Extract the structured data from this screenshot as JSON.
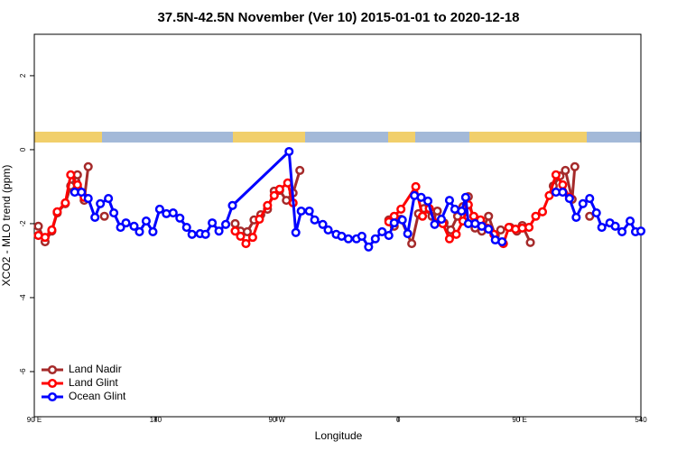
{
  "chart_data": {
    "type": "line",
    "title": "37.5N-42.5N November (Ver 10)   2015-01-01 to 2020-12-18",
    "xlabel": "Longitude",
    "ylabel": "XCO2 - MLO trend (ppm)",
    "xlim": [
      90,
      540
    ],
    "ylim": [
      -7.22,
      3.12
    ],
    "xticks": [
      {
        "value": 90,
        "label": "90 E"
      },
      180,
      {
        "value": 270,
        "label": "90 W"
      },
      {
        "value": 360,
        "label": "0"
      },
      {
        "value": 450,
        "label": "90 E"
      },
      540
    ],
    "yticks": [
      -6,
      -4,
      -2,
      0,
      2
    ],
    "legend": "bottom-left",
    "series": [
      {
        "name": "Land Nadir",
        "color": "#a52a2a",
        "x": [
          93,
          98,
          103,
          107,
          113,
          117,
          122,
          127,
          130,
          null,
          142,
          null,
          239,
          243,
          248,
          253,
          258,
          263,
          268,
          272,
          277,
          282,
          287,
          null,
          353,
          357,
          362,
          370,
          375,
          379,
          385,
          389,
          394,
          399,
          404,
          408,
          412,
          417,
          422,
          427,
          432,
          436,
          443,
          448,
          452,
          458,
          null,
          475,
          480,
          484,
          489,
          491,
          null,
          502
        ],
        "values": [
          -2.07,
          -2.49,
          -2.2,
          -1.71,
          -1.46,
          -0.98,
          -0.68,
          -1.37,
          -0.46,
          null,
          -1.8,
          null,
          -2.0,
          -2.2,
          -2.22,
          -1.9,
          -1.76,
          -1.61,
          -1.12,
          -1.1,
          -1.37,
          -1.17,
          -0.56,
          null,
          -1.9,
          -2.07,
          -1.88,
          -2.54,
          -1.73,
          -1.59,
          -1.8,
          -1.66,
          -1.98,
          -2.17,
          -1.8,
          -1.54,
          -1.27,
          -2.12,
          -2.2,
          -1.8,
          -2.32,
          -2.17,
          -2.1,
          -2.2,
          -2.05,
          -2.51,
          null,
          -0.98,
          -0.71,
          -0.56,
          -1.34,
          -0.46,
          null,
          -1.8
        ]
      },
      {
        "name": "Land Glint",
        "color": "#ff0000",
        "x": [
          93,
          98,
          103,
          107,
          113,
          117,
          122,
          127,
          null,
          239,
          243,
          247,
          252,
          257,
          263,
          268,
          272,
          278,
          282,
          null,
          353,
          357,
          362,
          373,
          378,
          383,
          388,
          393,
          398,
          403,
          408,
          412,
          416,
          421,
          426,
          431,
          438,
          442,
          447,
          452,
          457,
          462,
          467,
          472,
          477,
          482,
          487
        ],
        "values": [
          -2.32,
          -2.37,
          -2.17,
          -1.68,
          -1.44,
          -0.68,
          -0.95,
          -1.29,
          null,
          -2.2,
          -2.34,
          -2.54,
          -2.37,
          -1.88,
          -1.51,
          -1.24,
          -1.07,
          -0.9,
          -1.44,
          null,
          -1.95,
          -1.8,
          -1.61,
          -1.0,
          -1.8,
          -1.59,
          -1.98,
          -2.0,
          -2.41,
          -2.29,
          -1.93,
          -1.49,
          -1.8,
          -1.9,
          -2.12,
          -2.29,
          -2.54,
          -2.1,
          -2.15,
          -2.12,
          -2.1,
          -1.8,
          -1.68,
          -1.24,
          -0.68,
          -0.95,
          -1.29
        ]
      },
      {
        "name": "Ocean Glint",
        "color": "#0000ff",
        "x": [
          120,
          125,
          130,
          135,
          139,
          145,
          149,
          154,
          158,
          164,
          168,
          173,
          178,
          183,
          188,
          193,
          198,
          203,
          207,
          213,
          217,
          222,
          227,
          232,
          237,
          279,
          284,
          288,
          294,
          298,
          304,
          308,
          314,
          318,
          323,
          329,
          333,
          338,
          343,
          348,
          353,
          357,
          363,
          367,
          372,
          377,
          382,
          387,
          392,
          398,
          402,
          407,
          410,
          412,
          417,
          422,
          427,
          432,
          437,
          null,
          477,
          482,
          487,
          492,
          497,
          502,
          507,
          511,
          517,
          521,
          526,
          532,
          536,
          540
        ],
        "values": [
          -1.15,
          -1.15,
          -1.32,
          -1.83,
          -1.46,
          -1.32,
          -1.71,
          -2.1,
          -1.98,
          -2.07,
          -2.22,
          -1.93,
          -2.22,
          -1.61,
          -1.73,
          -1.71,
          -1.85,
          -2.1,
          -2.29,
          -2.27,
          -2.29,
          -1.98,
          -2.2,
          -2.02,
          -1.51,
          -0.05,
          -2.24,
          -1.66,
          -1.66,
          -1.9,
          -2.02,
          -2.17,
          -2.29,
          -2.34,
          -2.41,
          -2.41,
          -2.34,
          -2.63,
          -2.41,
          -2.22,
          -2.32,
          -1.98,
          -1.9,
          -2.27,
          -1.24,
          -1.29,
          -1.39,
          -2.02,
          -1.88,
          -1.37,
          -1.61,
          -1.66,
          -1.29,
          -2.0,
          -2.0,
          -2.07,
          -2.15,
          -2.44,
          -2.49,
          null,
          -1.15,
          -1.15,
          -1.32,
          -1.83,
          -1.46,
          -1.32,
          -1.71,
          -2.1,
          -1.98,
          -2.07,
          -2.22,
          -1.93,
          -2.22,
          -2.2
        ]
      }
    ]
  }
}
